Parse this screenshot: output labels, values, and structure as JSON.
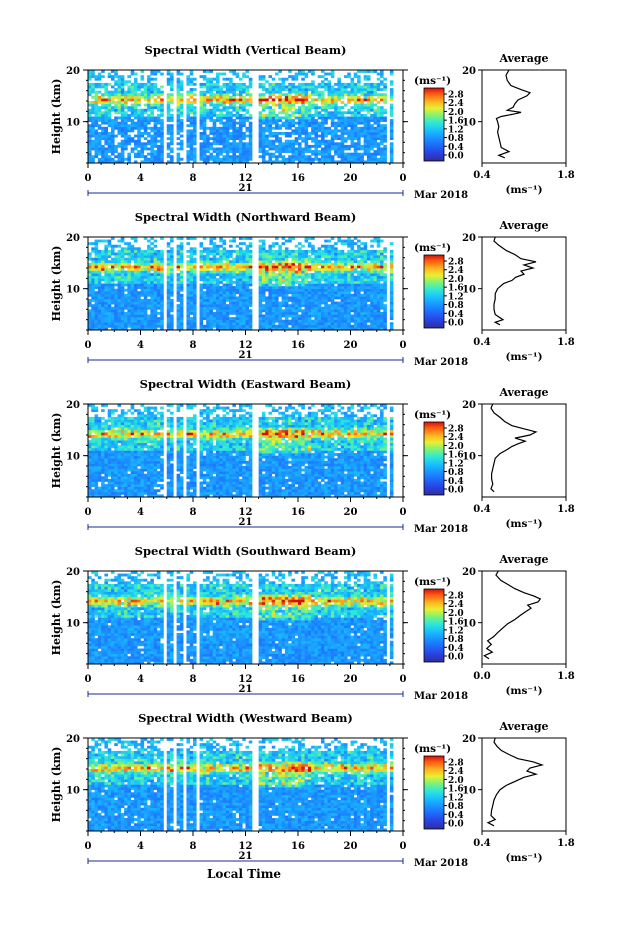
{
  "figure": {
    "date_day": "21",
    "date_month_year": "Mar 2018",
    "xlabel": "Local Time",
    "ylabel": "Height (km)",
    "colorbar_unit": "(ms⁻¹)",
    "profile_title": "Average",
    "profile_unit": "(ms⁻¹)"
  },
  "chart_data": [
    {
      "type": "heatmap",
      "title": "Spectral Width (Vertical Beam)",
      "xlabel": "Local Time",
      "ylabel": "Height (km)",
      "xlim": [
        0,
        24
      ],
      "ylim": [
        2,
        20
      ],
      "xticks": [
        "0",
        "4",
        "8",
        "12",
        "16",
        "20",
        "0"
      ],
      "yticks": [
        "10",
        "20"
      ],
      "colorbar": {
        "unit": "(ms⁻¹)",
        "range": [
          0,
          2.8
        ],
        "ticks": [
          "0.0",
          "0.4",
          "0.8",
          "1.2",
          "1.6",
          "2.0",
          "2.4",
          "2.8"
        ]
      },
      "profile": {
        "title": "Average",
        "xlabel": "(ms⁻¹)",
        "xlim": [
          0.4,
          1.8
        ],
        "xticks": [
          "0.4",
          "1.8"
        ],
        "ylim": [
          2,
          20
        ],
        "yticks": [
          "10",
          "20"
        ],
        "points": [
          [
            0.78,
            3
          ],
          [
            0.68,
            3.5
          ],
          [
            0.85,
            4.2
          ],
          [
            0.72,
            5
          ],
          [
            0.7,
            6
          ],
          [
            0.68,
            7
          ],
          [
            0.66,
            8
          ],
          [
            0.68,
            9
          ],
          [
            0.66,
            10
          ],
          [
            0.64,
            10.6
          ],
          [
            0.72,
            11
          ],
          [
            0.9,
            11.4
          ],
          [
            1.05,
            11.8
          ],
          [
            0.82,
            12.2
          ],
          [
            0.92,
            12.8
          ],
          [
            0.95,
            13.5
          ],
          [
            1.0,
            14.2
          ],
          [
            1.15,
            15
          ],
          [
            1.2,
            15.6
          ],
          [
            1.05,
            16.2
          ],
          [
            0.88,
            17
          ],
          [
            0.82,
            18
          ],
          [
            0.8,
            19
          ],
          [
            0.85,
            20
          ]
        ]
      }
    },
    {
      "type": "heatmap",
      "title": "Spectral Width (Northward Beam)",
      "xlabel": "Local Time",
      "ylabel": "Height (km)",
      "xlim": [
        0,
        24
      ],
      "ylim": [
        2,
        20
      ],
      "xticks": [
        "0",
        "4",
        "8",
        "12",
        "16",
        "20",
        "0"
      ],
      "yticks": [
        "10",
        "20"
      ],
      "colorbar": {
        "unit": "(ms⁻¹)",
        "range": [
          0,
          2.8
        ],
        "ticks": [
          "0.0",
          "0.4",
          "0.8",
          "1.2",
          "1.6",
          "2.0",
          "2.4",
          "2.8"
        ]
      },
      "profile": {
        "title": "Average",
        "xlabel": "(ms⁻¹)",
        "xlim": [
          0.4,
          1.8
        ],
        "xticks": [
          "0.4",
          "1.8"
        ],
        "ylim": [
          2,
          20
        ],
        "yticks": [
          "10",
          "20"
        ],
        "points": [
          [
            0.7,
            3
          ],
          [
            0.62,
            3.5
          ],
          [
            0.75,
            4
          ],
          [
            0.62,
            5
          ],
          [
            0.6,
            6
          ],
          [
            0.6,
            7
          ],
          [
            0.62,
            8
          ],
          [
            0.62,
            9
          ],
          [
            0.66,
            10
          ],
          [
            0.76,
            11
          ],
          [
            0.9,
            11.6
          ],
          [
            0.96,
            12.2
          ],
          [
            1.1,
            12.8
          ],
          [
            1.05,
            13.4
          ],
          [
            1.25,
            14
          ],
          [
            1.1,
            14.6
          ],
          [
            1.3,
            15.2
          ],
          [
            1.05,
            15.8
          ],
          [
            0.95,
            16.6
          ],
          [
            0.8,
            17.4
          ],
          [
            0.68,
            18.4
          ],
          [
            0.6,
            19.2
          ],
          [
            0.62,
            20
          ]
        ]
      }
    },
    {
      "type": "heatmap",
      "title": "Spectral Width (Eastward Beam)",
      "xlabel": "Local Time",
      "ylabel": "Height (km)",
      "xlim": [
        0,
        24
      ],
      "ylim": [
        2,
        20
      ],
      "xticks": [
        "0",
        "4",
        "8",
        "12",
        "16",
        "20",
        "0"
      ],
      "yticks": [
        "10",
        "20"
      ],
      "colorbar": {
        "unit": "(ms⁻¹)",
        "range": [
          0,
          2.8
        ],
        "ticks": [
          "0.0",
          "0.4",
          "0.8",
          "1.2",
          "1.6",
          "2.0",
          "2.4",
          "2.8"
        ]
      },
      "profile": {
        "title": "Average",
        "xlabel": "(ms⁻¹)",
        "xlim": [
          0.4,
          1.8
        ],
        "xticks": [
          "0.4",
          "1.8"
        ],
        "ylim": [
          2,
          20
        ],
        "yticks": [
          "10",
          "20"
        ],
        "points": [
          [
            0.6,
            3
          ],
          [
            0.55,
            3.6
          ],
          [
            0.58,
            4.5
          ],
          [
            0.56,
            5.5
          ],
          [
            0.56,
            6.5
          ],
          [
            0.58,
            7.5
          ],
          [
            0.6,
            8.5
          ],
          [
            0.62,
            9.5
          ],
          [
            0.7,
            10.4
          ],
          [
            0.82,
            11.2
          ],
          [
            0.9,
            11.8
          ],
          [
            1.0,
            12.3
          ],
          [
            1.12,
            12.8
          ],
          [
            0.95,
            13.4
          ],
          [
            1.2,
            14
          ],
          [
            1.3,
            14.6
          ],
          [
            1.1,
            15.2
          ],
          [
            0.9,
            15.8
          ],
          [
            0.78,
            16.6
          ],
          [
            0.7,
            17.4
          ],
          [
            0.6,
            18.3
          ],
          [
            0.55,
            19.2
          ],
          [
            0.58,
            20
          ]
        ]
      }
    },
    {
      "type": "heatmap",
      "title": "Spectral Width (Southward Beam)",
      "xlabel": "Local Time",
      "ylabel": "Height (km)",
      "xlim": [
        0,
        24
      ],
      "ylim": [
        2,
        20
      ],
      "xticks": [
        "0",
        "4",
        "8",
        "12",
        "16",
        "20",
        "0"
      ],
      "yticks": [
        "10",
        "20"
      ],
      "colorbar": {
        "unit": "(ms⁻¹)",
        "range": [
          0,
          2.8
        ],
        "ticks": [
          "0.0",
          "0.4",
          "0.8",
          "1.2",
          "1.6",
          "2.0",
          "2.4",
          "2.8"
        ]
      },
      "profile": {
        "title": "Average",
        "xlabel": "(ms⁻¹)",
        "xlim": [
          0.0,
          1.8
        ],
        "xticks": [
          "0.0",
          "1.8"
        ],
        "ylim": [
          2,
          20
        ],
        "yticks": [
          "10",
          "20"
        ],
        "points": [
          [
            0.15,
            3
          ],
          [
            0.05,
            3.6
          ],
          [
            0.22,
            4.3
          ],
          [
            0.1,
            5
          ],
          [
            0.2,
            5.8
          ],
          [
            0.12,
            6.5
          ],
          [
            0.25,
            7.3
          ],
          [
            0.35,
            8.2
          ],
          [
            0.45,
            9
          ],
          [
            0.55,
            9.8
          ],
          [
            0.7,
            10.6
          ],
          [
            0.82,
            11.4
          ],
          [
            0.95,
            12.2
          ],
          [
            1.05,
            12.8
          ],
          [
            0.98,
            13.4
          ],
          [
            1.2,
            14
          ],
          [
            1.25,
            14.6
          ],
          [
            1.1,
            15.2
          ],
          [
            0.9,
            15.8
          ],
          [
            0.7,
            16.6
          ],
          [
            0.55,
            17.4
          ],
          [
            0.4,
            18.2
          ],
          [
            0.3,
            19.2
          ],
          [
            0.35,
            20
          ]
        ]
      }
    },
    {
      "type": "heatmap",
      "title": "Spectral Width (Westward Beam)",
      "xlabel": "Local Time",
      "ylabel": "Height (km)",
      "xlim": [
        0,
        24
      ],
      "ylim": [
        2,
        20
      ],
      "xticks": [
        "0",
        "4",
        "8",
        "12",
        "16",
        "20",
        "0"
      ],
      "yticks": [
        "10",
        "20"
      ],
      "colorbar": {
        "unit": "(ms⁻¹)",
        "range": [
          0,
          2.8
        ],
        "ticks": [
          "0.0",
          "0.4",
          "0.8",
          "1.2",
          "1.6",
          "2.0",
          "2.4",
          "2.8"
        ]
      },
      "profile": {
        "title": "Average",
        "xlabel": "(ms⁻¹)",
        "xlim": [
          0.4,
          1.8
        ],
        "xticks": [
          "0.4",
          "1.8"
        ],
        "ylim": [
          2,
          20
        ],
        "yticks": [
          "10",
          "20"
        ],
        "points": [
          [
            0.6,
            3
          ],
          [
            0.5,
            3.6
          ],
          [
            0.62,
            4.2
          ],
          [
            0.55,
            5
          ],
          [
            0.56,
            6
          ],
          [
            0.58,
            7
          ],
          [
            0.6,
            8
          ],
          [
            0.64,
            9
          ],
          [
            0.7,
            10
          ],
          [
            0.8,
            10.8
          ],
          [
            0.95,
            11.6
          ],
          [
            1.1,
            12.4
          ],
          [
            1.3,
            13
          ],
          [
            1.15,
            13.6
          ],
          [
            1.2,
            14.2
          ],
          [
            1.4,
            14.8
          ],
          [
            1.25,
            15.4
          ],
          [
            1.0,
            16
          ],
          [
            0.85,
            16.8
          ],
          [
            0.72,
            17.6
          ],
          [
            0.65,
            18.4
          ],
          [
            0.6,
            19.2
          ],
          [
            0.62,
            20
          ]
        ]
      }
    }
  ]
}
